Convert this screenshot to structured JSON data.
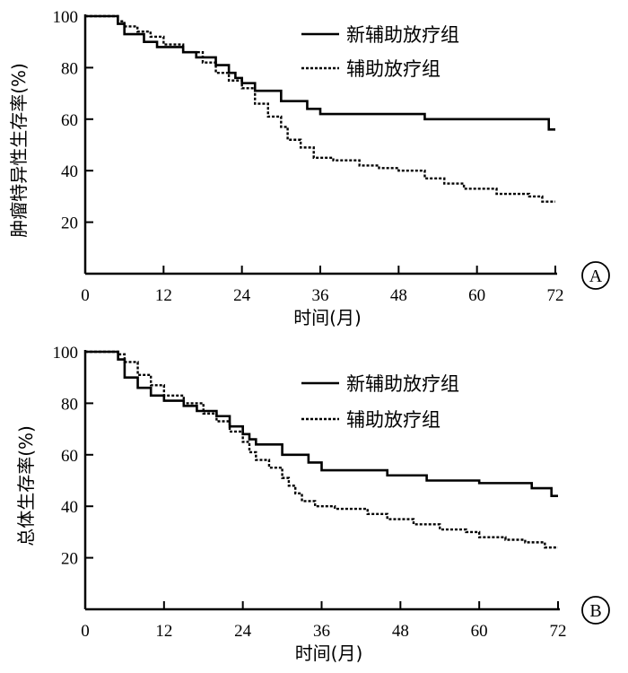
{
  "chart_data": [
    {
      "type": "line",
      "panel_label": "A",
      "xlabel": "时间(月)",
      "ylabel": "肿瘤特异性生存率(%)",
      "xlim": [
        0,
        72
      ],
      "ylim": [
        0,
        100
      ],
      "xticks": [
        0,
        12,
        24,
        36,
        48,
        60,
        72
      ],
      "yticks": [
        20,
        40,
        60,
        80,
        100
      ],
      "grid": false,
      "legend_position": "top-right",
      "series": [
        {
          "name": "新辅助放疗组",
          "style": "solid",
          "x": [
            0,
            4,
            5,
            6,
            9,
            11,
            15,
            17,
            20,
            22,
            23,
            24,
            26,
            30,
            34,
            36,
            40,
            46,
            52,
            60,
            71,
            72
          ],
          "y": [
            100,
            100,
            97,
            93,
            90,
            88,
            86,
            84,
            81,
            78,
            76,
            74,
            71,
            67,
            64,
            62,
            62,
            62,
            60,
            60,
            56,
            56
          ]
        },
        {
          "name": "辅助放疗组",
          "style": "dotted",
          "x": [
            0,
            4,
            5,
            6,
            8,
            10,
            12,
            15,
            18,
            20,
            22,
            24,
            26,
            28,
            30,
            31,
            33,
            35,
            38,
            42,
            45,
            48,
            52,
            55,
            58,
            60,
            63,
            66,
            68,
            70,
            72
          ],
          "y": [
            100,
            100,
            98,
            96,
            94,
            92,
            89,
            86,
            82,
            78,
            75,
            72,
            66,
            61,
            57,
            52,
            49,
            45,
            44,
            42,
            41,
            40,
            37,
            35,
            33,
            33,
            31,
            31,
            30,
            28,
            28
          ]
        }
      ]
    },
    {
      "type": "line",
      "panel_label": "B",
      "xlabel": "时间(月)",
      "ylabel": "总体生存率(%)",
      "xlim": [
        0,
        72
      ],
      "ylim": [
        0,
        100
      ],
      "xticks": [
        0,
        12,
        24,
        36,
        48,
        60,
        72
      ],
      "yticks": [
        20,
        40,
        60,
        80,
        100
      ],
      "grid": false,
      "legend_position": "top-right",
      "series": [
        {
          "name": "新辅助放疗组",
          "style": "solid",
          "x": [
            0,
            4,
            5,
            6,
            8,
            10,
            12,
            15,
            17,
            20,
            22,
            24,
            25,
            26,
            30,
            34,
            36,
            40,
            46,
            52,
            60,
            68,
            71,
            72
          ],
          "y": [
            100,
            100,
            97,
            90,
            86,
            83,
            81,
            79,
            77,
            75,
            71,
            68,
            66,
            64,
            60,
            57,
            54,
            54,
            52,
            50,
            49,
            47,
            44,
            44
          ]
        },
        {
          "name": "辅助放疗组",
          "style": "dotted",
          "x": [
            0,
            4,
            5,
            6,
            8,
            10,
            12,
            15,
            18,
            20,
            22,
            24,
            25,
            26,
            28,
            30,
            31,
            32,
            33,
            35,
            38,
            43,
            46,
            50,
            54,
            58,
            60,
            64,
            67,
            70,
            72
          ],
          "y": [
            100,
            100,
            99,
            96,
            91,
            87,
            83,
            80,
            76,
            73,
            69,
            65,
            61,
            58,
            55,
            51,
            48,
            45,
            42,
            40,
            39,
            37,
            35,
            33,
            31,
            30,
            28,
            27,
            26,
            24,
            24
          ]
        }
      ]
    }
  ]
}
